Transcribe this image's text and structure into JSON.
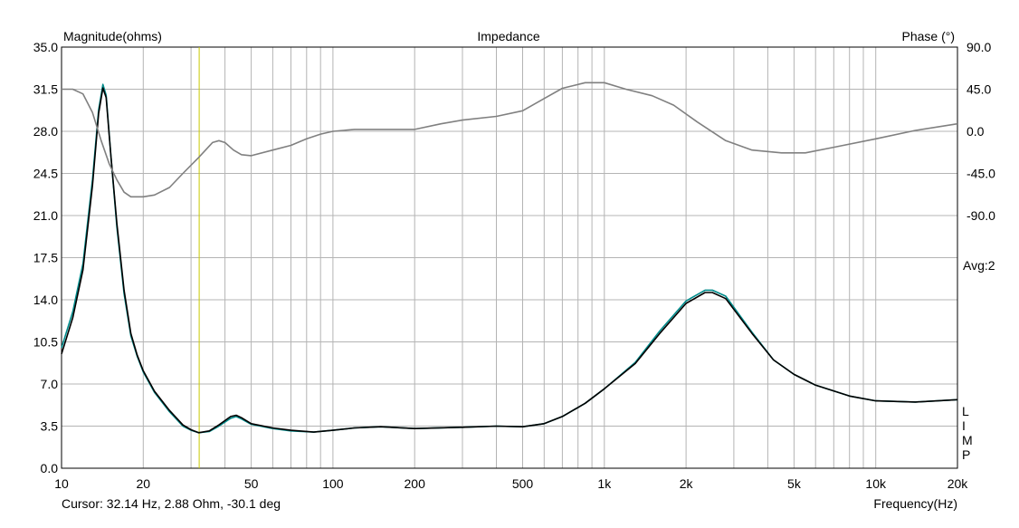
{
  "chart_data": {
    "type": "line",
    "title": "Impedance",
    "ylabel": "Magnitude(ohms)",
    "y2label": "Phase (°)",
    "xlabel": "Frequency(Hz)",
    "xscale": "log",
    "xlim": [
      10,
      20000
    ],
    "ylim": [
      0,
      35
    ],
    "y2lim": [
      -90,
      90
    ],
    "grid": true,
    "y_ticks": [
      "35.0",
      "31.5",
      "28.0",
      "24.5",
      "21.0",
      "17.5",
      "14.0",
      "10.5",
      "7.0",
      "3.5",
      "0.0"
    ],
    "y2_ticks": [
      "90.0",
      "45.0",
      "0.0",
      "-45.0",
      "-90.0"
    ],
    "x_ticks": [
      {
        "value": 10,
        "label": "10"
      },
      {
        "value": 20,
        "label": "20"
      },
      {
        "value": 50,
        "label": "50"
      },
      {
        "value": 100,
        "label": "100"
      },
      {
        "value": 200,
        "label": "200"
      },
      {
        "value": 500,
        "label": "500"
      },
      {
        "value": 1000,
        "label": "1k"
      },
      {
        "value": 2000,
        "label": "2k"
      },
      {
        "value": 5000,
        "label": "5k"
      },
      {
        "value": 10000,
        "label": "10k"
      },
      {
        "value": 20000,
        "label": "20k"
      }
    ],
    "annotation": "Avg:2",
    "side_label": "LIMP",
    "cursor": {
      "freq": 32.14,
      "text": "Cursor: 32.14 Hz, 2.88 Ohm, -30.1 deg"
    },
    "series": [
      {
        "axis": "left",
        "color": "#008b8b",
        "points": [
          [
            10,
            10.0
          ],
          [
            11,
            13.0
          ],
          [
            12,
            17.0
          ],
          [
            13,
            24.0
          ],
          [
            13.7,
            29.8
          ],
          [
            14.2,
            31.9
          ],
          [
            14.6,
            31.0
          ],
          [
            15.2,
            26.0
          ],
          [
            16,
            20.0
          ],
          [
            17,
            14.5
          ],
          [
            18,
            11.0
          ],
          [
            19,
            9.3
          ],
          [
            20,
            8.0
          ],
          [
            22,
            6.3
          ],
          [
            25,
            4.7
          ],
          [
            28,
            3.5
          ],
          [
            30,
            3.15
          ],
          [
            32,
            2.95
          ],
          [
            35,
            3.05
          ],
          [
            38,
            3.5
          ],
          [
            42,
            4.15
          ],
          [
            44,
            4.3
          ],
          [
            46,
            4.1
          ],
          [
            50,
            3.65
          ],
          [
            60,
            3.3
          ],
          [
            70,
            3.1
          ],
          [
            85,
            3.0
          ],
          [
            100,
            3.15
          ],
          [
            120,
            3.35
          ],
          [
            150,
            3.45
          ],
          [
            200,
            3.3
          ],
          [
            300,
            3.4
          ],
          [
            400,
            3.5
          ],
          [
            500,
            3.45
          ],
          [
            600,
            3.7
          ],
          [
            700,
            4.3
          ],
          [
            850,
            5.4
          ],
          [
            1000,
            6.6
          ],
          [
            1300,
            8.8
          ],
          [
            1600,
            11.4
          ],
          [
            2000,
            13.9
          ],
          [
            2350,
            14.8
          ],
          [
            2500,
            14.8
          ],
          [
            2800,
            14.3
          ],
          [
            3500,
            11.3
          ],
          [
            4200,
            9.0
          ],
          [
            5000,
            7.8
          ],
          [
            6000,
            6.9
          ],
          [
            8000,
            6.0
          ],
          [
            10000,
            5.6
          ],
          [
            14000,
            5.5
          ],
          [
            20000,
            5.7
          ]
        ]
      },
      {
        "axis": "left",
        "color": "#000000",
        "points": [
          [
            10,
            9.5
          ],
          [
            11,
            12.5
          ],
          [
            12,
            16.5
          ],
          [
            13,
            23.5
          ],
          [
            13.7,
            29.5
          ],
          [
            14.2,
            31.6
          ],
          [
            14.6,
            30.8
          ],
          [
            15.2,
            26.0
          ],
          [
            16,
            20.3
          ],
          [
            17,
            14.8
          ],
          [
            18,
            11.2
          ],
          [
            19,
            9.4
          ],
          [
            20,
            8.1
          ],
          [
            22,
            6.4
          ],
          [
            25,
            4.8
          ],
          [
            28,
            3.6
          ],
          [
            30,
            3.2
          ],
          [
            32,
            2.95
          ],
          [
            35,
            3.1
          ],
          [
            38,
            3.6
          ],
          [
            42,
            4.3
          ],
          [
            44,
            4.4
          ],
          [
            46,
            4.2
          ],
          [
            50,
            3.7
          ],
          [
            60,
            3.35
          ],
          [
            70,
            3.15
          ],
          [
            85,
            3.0
          ],
          [
            100,
            3.15
          ],
          [
            120,
            3.35
          ],
          [
            150,
            3.45
          ],
          [
            200,
            3.3
          ],
          [
            300,
            3.4
          ],
          [
            400,
            3.5
          ],
          [
            500,
            3.45
          ],
          [
            600,
            3.7
          ],
          [
            700,
            4.3
          ],
          [
            850,
            5.4
          ],
          [
            1000,
            6.6
          ],
          [
            1300,
            8.7
          ],
          [
            1600,
            11.2
          ],
          [
            2000,
            13.7
          ],
          [
            2350,
            14.6
          ],
          [
            2500,
            14.6
          ],
          [
            2800,
            14.1
          ],
          [
            3500,
            11.2
          ],
          [
            4200,
            9.0
          ],
          [
            5000,
            7.8
          ],
          [
            6000,
            6.9
          ],
          [
            8000,
            6.0
          ],
          [
            10000,
            5.6
          ],
          [
            14000,
            5.5
          ],
          [
            20000,
            5.7
          ]
        ]
      },
      {
        "axis": "right",
        "color": "#808080",
        "points": [
          [
            10,
            45
          ],
          [
            11,
            45
          ],
          [
            12,
            40
          ],
          [
            13,
            20
          ],
          [
            14,
            -10
          ],
          [
            15,
            -35
          ],
          [
            16,
            -52
          ],
          [
            17,
            -65
          ],
          [
            18,
            -70
          ],
          [
            20,
            -70
          ],
          [
            22,
            -68
          ],
          [
            25,
            -60
          ],
          [
            28,
            -45
          ],
          [
            32,
            -28
          ],
          [
            36,
            -12
          ],
          [
            38,
            -10
          ],
          [
            40,
            -12
          ],
          [
            43,
            -20
          ],
          [
            46,
            -25
          ],
          [
            50,
            -26
          ],
          [
            60,
            -20
          ],
          [
            70,
            -15
          ],
          [
            80,
            -8
          ],
          [
            90,
            -3
          ],
          [
            100,
            0
          ],
          [
            120,
            2
          ],
          [
            150,
            2
          ],
          [
            200,
            2
          ],
          [
            250,
            8
          ],
          [
            300,
            12
          ],
          [
            400,
            16
          ],
          [
            500,
            22
          ],
          [
            600,
            35
          ],
          [
            700,
            46
          ],
          [
            850,
            52
          ],
          [
            1000,
            52
          ],
          [
            1200,
            45
          ],
          [
            1500,
            38
          ],
          [
            1800,
            28
          ],
          [
            2200,
            10
          ],
          [
            2800,
            -10
          ],
          [
            3500,
            -20
          ],
          [
            4500,
            -23
          ],
          [
            5500,
            -23
          ],
          [
            7000,
            -17
          ],
          [
            10000,
            -8
          ],
          [
            14000,
            1
          ],
          [
            20000,
            8
          ]
        ]
      }
    ]
  }
}
